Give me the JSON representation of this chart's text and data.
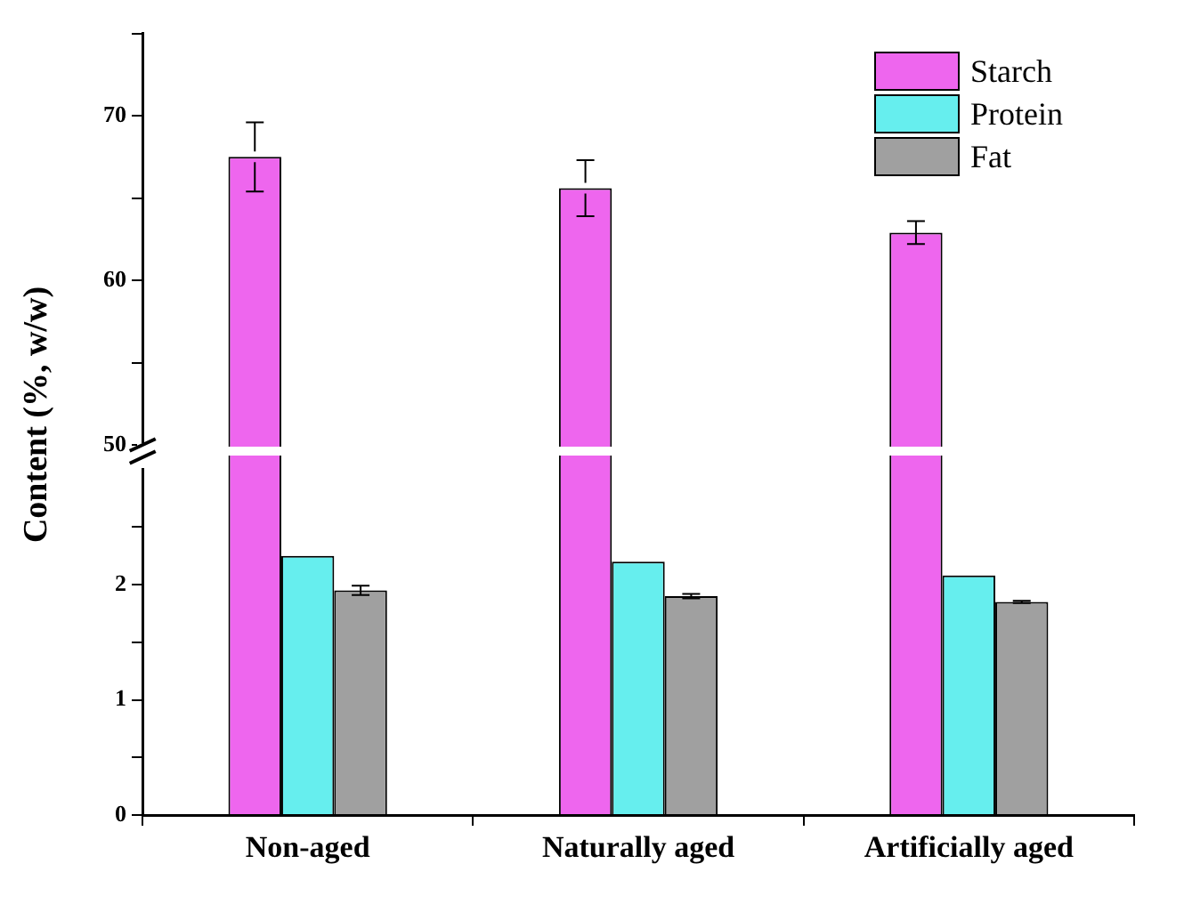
{
  "chart_data": [
    {
      "type": "bar",
      "series": [
        {
          "name": "Starch",
          "color": "#ee66ee",
          "values": [
            67.5,
            65.6,
            62.9
          ],
          "errors": [
            2.1,
            1.7,
            0.7
          ]
        }
      ],
      "ylim": [
        50,
        75
      ],
      "yticks": [
        50,
        {
          "value": 55,
          "label": null
        },
        60,
        {
          "value": 65,
          "label": null
        },
        70,
        {
          "value": 75,
          "label": null
        }
      ],
      "tick_labels": "y",
      "legend": "top right"
    },
    {
      "type": "bar",
      "ylabel": "Content (%, w/w)",
      "categories": [
        "Non-aged",
        "Naturally aged",
        "Artificially aged"
      ],
      "series": [
        {
          "name": "Protein",
          "color": "#66eeee",
          "values": [
            2.25,
            2.2,
            2.08
          ]
        },
        {
          "name": "Fat",
          "color": "#a0a0a0",
          "values": [
            1.95,
            1.9,
            1.85
          ],
          "errors": [
            0.04,
            0.02,
            0.01
          ]
        }
      ],
      "ylim": [
        0,
        3
      ],
      "yticks": [
        0,
        {
          "value": 0.5,
          "label": null
        },
        1,
        {
          "value": 1.5,
          "label": null
        },
        2,
        {
          "value": 2.5,
          "label": null
        }
      ],
      "legend": "top right"
    }
  ]
}
